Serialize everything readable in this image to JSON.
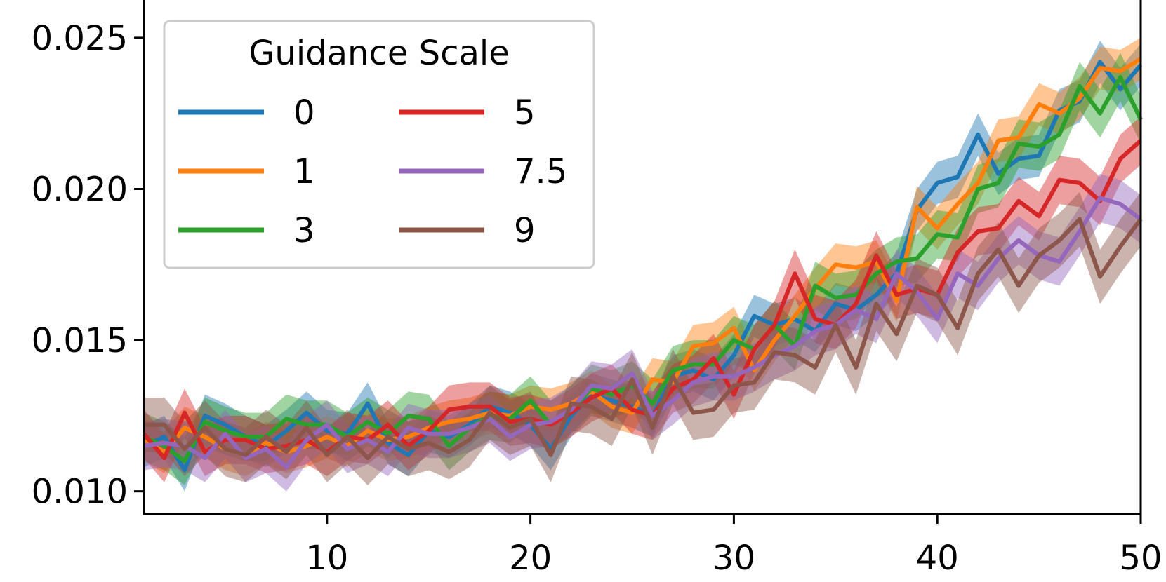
{
  "chart_data": {
    "type": "line",
    "title": "",
    "xlabel": "",
    "ylabel": "",
    "xlim": [
      1,
      50
    ],
    "ylim": [
      0.00925,
      0.02625
    ],
    "xticks": [
      10,
      20,
      30,
      40,
      50
    ],
    "xtick_labels": [
      "10",
      "20",
      "30",
      "40",
      "50"
    ],
    "yticks": [
      0.01,
      0.015,
      0.02,
      0.025
    ],
    "ytick_labels": [
      "0.010",
      "0.015",
      "0.020",
      "0.025"
    ],
    "grid": false,
    "legend": {
      "title": "Guidance Scale",
      "placement": "top-left",
      "columns": 2
    },
    "x": [
      1,
      2,
      3,
      4,
      5,
      6,
      7,
      8,
      9,
      10,
      11,
      12,
      13,
      14,
      15,
      16,
      17,
      18,
      19,
      20,
      21,
      22,
      23,
      24,
      25,
      26,
      27,
      28,
      29,
      30,
      31,
      32,
      33,
      34,
      35,
      36,
      37,
      38,
      39,
      40,
      41,
      42,
      43,
      44,
      45,
      46,
      47,
      48,
      49,
      50
    ],
    "series": [
      {
        "name": "0",
        "color": "#1f77b4",
        "band": 0.0007,
        "values": [
          0.0115,
          0.0118,
          0.0107,
          0.0125,
          0.0122,
          0.0118,
          0.0115,
          0.012,
          0.0126,
          0.012,
          0.0119,
          0.0129,
          0.0116,
          0.0112,
          0.012,
          0.0118,
          0.0122,
          0.0128,
          0.0126,
          0.0122,
          0.0114,
          0.0125,
          0.0132,
          0.013,
          0.0128,
          0.0125,
          0.0138,
          0.014,
          0.0137,
          0.0145,
          0.0158,
          0.0155,
          0.0157,
          0.0153,
          0.0162,
          0.016,
          0.0165,
          0.0172,
          0.0193,
          0.0202,
          0.0204,
          0.0218,
          0.0205,
          0.021,
          0.0211,
          0.0226,
          0.0229,
          0.0242,
          0.0233,
          0.0241
        ]
      },
      {
        "name": "1",
        "color": "#ff7f0e",
        "band": 0.0007,
        "values": [
          0.0117,
          0.0113,
          0.0121,
          0.0118,
          0.0114,
          0.0112,
          0.0116,
          0.0113,
          0.0115,
          0.0118,
          0.0115,
          0.012,
          0.0117,
          0.0118,
          0.0121,
          0.0123,
          0.0124,
          0.0126,
          0.0125,
          0.0128,
          0.0127,
          0.0129,
          0.0133,
          0.0128,
          0.0126,
          0.0137,
          0.0136,
          0.0148,
          0.0149,
          0.0154,
          0.014,
          0.015,
          0.0158,
          0.0167,
          0.0175,
          0.0174,
          0.0176,
          0.0163,
          0.0194,
          0.0187,
          0.0195,
          0.0202,
          0.0216,
          0.0217,
          0.0228,
          0.0225,
          0.023,
          0.024,
          0.0239,
          0.0243
        ]
      },
      {
        "name": "3",
        "color": "#2ca02c",
        "band": 0.0008,
        "values": [
          0.0118,
          0.0115,
          0.011,
          0.0123,
          0.012,
          0.0118,
          0.0118,
          0.0124,
          0.0122,
          0.0122,
          0.0118,
          0.0123,
          0.0119,
          0.0125,
          0.0124,
          0.0115,
          0.0121,
          0.0125,
          0.0124,
          0.013,
          0.0122,
          0.0127,
          0.0134,
          0.0132,
          0.0135,
          0.0129,
          0.014,
          0.0142,
          0.0142,
          0.015,
          0.0147,
          0.0155,
          0.0148,
          0.0168,
          0.0164,
          0.0165,
          0.0172,
          0.0176,
          0.0177,
          0.0185,
          0.0184,
          0.02,
          0.0202,
          0.0215,
          0.0214,
          0.0218,
          0.0234,
          0.0225,
          0.0237,
          0.0223
        ]
      },
      {
        "name": "5",
        "color": "#d62728",
        "band": 0.0008,
        "values": [
          0.0119,
          0.0111,
          0.0126,
          0.0113,
          0.0117,
          0.0117,
          0.0114,
          0.0115,
          0.0117,
          0.0113,
          0.0118,
          0.0117,
          0.0122,
          0.0115,
          0.012,
          0.0127,
          0.0128,
          0.0128,
          0.0123,
          0.0124,
          0.0122,
          0.0126,
          0.0131,
          0.0134,
          0.0127,
          0.0125,
          0.0134,
          0.0137,
          0.0144,
          0.0132,
          0.0147,
          0.0155,
          0.0172,
          0.0157,
          0.0155,
          0.0162,
          0.0178,
          0.0165,
          0.0167,
          0.0165,
          0.0179,
          0.0186,
          0.0187,
          0.0196,
          0.0191,
          0.0203,
          0.0202,
          0.0196,
          0.021,
          0.0216
        ]
      },
      {
        "name": "7.5",
        "color": "#9467bd",
        "band": 0.0008,
        "values": [
          0.0115,
          0.0116,
          0.0115,
          0.0111,
          0.0119,
          0.0111,
          0.0114,
          0.0108,
          0.0117,
          0.0122,
          0.0114,
          0.0117,
          0.0113,
          0.0121,
          0.0119,
          0.0119,
          0.0121,
          0.0124,
          0.0118,
          0.0122,
          0.0123,
          0.0127,
          0.0135,
          0.0134,
          0.0139,
          0.0125,
          0.013,
          0.0136,
          0.0138,
          0.0138,
          0.0141,
          0.0145,
          0.0148,
          0.0153,
          0.0155,
          0.016,
          0.0157,
          0.0172,
          0.0166,
          0.0157,
          0.0172,
          0.0168,
          0.0177,
          0.0183,
          0.0178,
          0.0176,
          0.0186,
          0.0197,
          0.0195,
          0.019
        ]
      },
      {
        "name": "9",
        "color": "#8c564b",
        "band": 0.0009,
        "values": [
          0.0122,
          0.0122,
          0.0114,
          0.0121,
          0.0114,
          0.0112,
          0.0118,
          0.0113,
          0.0121,
          0.0112,
          0.0118,
          0.0111,
          0.0118,
          0.0114,
          0.0116,
          0.0113,
          0.0117,
          0.0126,
          0.0121,
          0.0124,
          0.0112,
          0.0129,
          0.0128,
          0.0124,
          0.0137,
          0.0121,
          0.0138,
          0.0126,
          0.0127,
          0.0135,
          0.0136,
          0.0146,
          0.0145,
          0.0141,
          0.0155,
          0.0141,
          0.0162,
          0.0152,
          0.0168,
          0.0165,
          0.0154,
          0.0172,
          0.018,
          0.0168,
          0.0178,
          0.0183,
          0.019,
          0.0171,
          0.0181,
          0.019
        ]
      }
    ]
  }
}
